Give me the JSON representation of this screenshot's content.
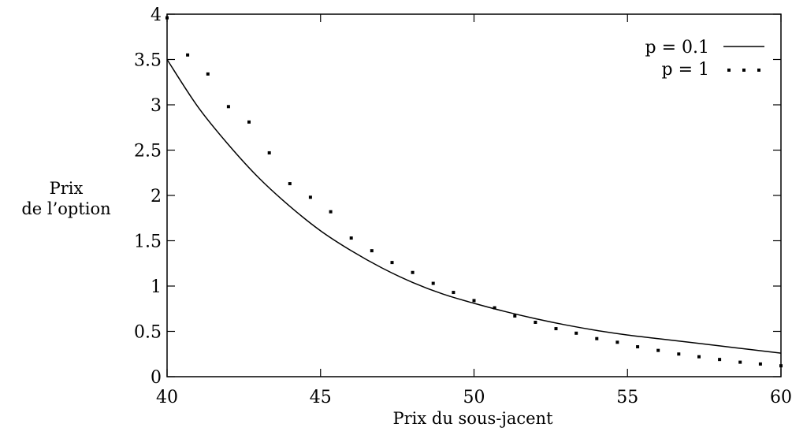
{
  "chart_data": {
    "type": "line",
    "xlabel": "Prix du sous-jacent",
    "ylabel_lines": [
      "Prix",
      "de l’option"
    ],
    "xlim": [
      40,
      60
    ],
    "ylim": [
      0,
      4
    ],
    "xticks": [
      "40",
      "45",
      "50",
      "55",
      "60"
    ],
    "yticks": [
      "0",
      "0.5",
      "1",
      "1.5",
      "2",
      "2.5",
      "3",
      "3.5",
      "4"
    ],
    "grid": false,
    "legend_position": "top-right",
    "series": [
      {
        "name": "p = 0.1",
        "style": "solid",
        "x": [
          40,
          41,
          42,
          43,
          44,
          45,
          46,
          47,
          48,
          49,
          50,
          51,
          52,
          53,
          54,
          55,
          56,
          57,
          58,
          59,
          60
        ],
        "values": [
          3.5,
          2.98,
          2.56,
          2.19,
          1.88,
          1.61,
          1.39,
          1.2,
          1.04,
          0.91,
          0.81,
          0.72,
          0.64,
          0.57,
          0.51,
          0.46,
          0.42,
          0.38,
          0.34,
          0.3,
          0.26
        ]
      },
      {
        "name": "p = 1",
        "style": "dotted",
        "x": [
          40,
          40.67,
          41.33,
          42,
          42.67,
          43.33,
          44,
          44.67,
          45.33,
          46,
          46.67,
          47.33,
          48,
          48.67,
          49.33,
          50,
          50.67,
          51.33,
          52,
          52.67,
          53.33,
          54,
          54.67,
          55.33,
          56,
          56.67,
          57.33,
          58,
          58.67,
          59.33,
          60
        ],
        "values": [
          3.96,
          3.55,
          3.34,
          2.98,
          2.81,
          2.47,
          2.13,
          1.98,
          1.82,
          1.53,
          1.39,
          1.26,
          1.15,
          1.03,
          0.93,
          0.84,
          0.76,
          0.67,
          0.6,
          0.53,
          0.48,
          0.42,
          0.38,
          0.33,
          0.29,
          0.25,
          0.22,
          0.19,
          0.16,
          0.14,
          0.12
        ]
      }
    ]
  }
}
